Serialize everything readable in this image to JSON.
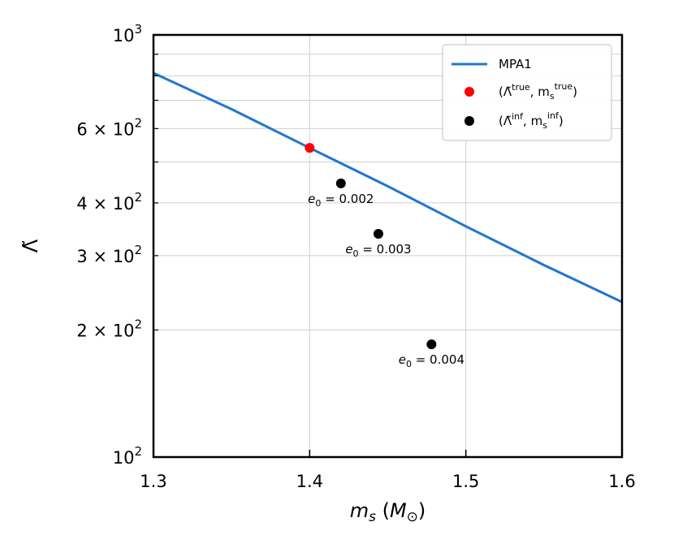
{
  "chart_data": {
    "type": "line",
    "title": "",
    "xlabel": "m_s (M_⊙)",
    "xlabel_parts": {
      "var": "m",
      "sub": "s",
      "unit_open": " (",
      "unit": "M",
      "unit_sub": "⊙",
      "unit_close": ")"
    },
    "ylabel": "Λ̃",
    "xscale": "linear",
    "yscale": "log",
    "xlim": [
      1.3,
      1.6
    ],
    "ylim": [
      100,
      1000
    ],
    "xticks": [
      1.3,
      1.4,
      1.5,
      1.6
    ],
    "xtick_labels": [
      "1.3",
      "1.4",
      "1.5",
      "1.6"
    ],
    "yticks_major": [
      {
        "value": 100,
        "mant": "",
        "base": "10",
        "exp": "2"
      },
      {
        "value": 1000,
        "mant": "",
        "base": "10",
        "exp": "3"
      }
    ],
    "yticks_minor_labeled": [
      {
        "value": 200,
        "mant": "2 × ",
        "base": "10",
        "exp": "2"
      },
      {
        "value": 300,
        "mant": "3 × ",
        "base": "10",
        "exp": "2"
      },
      {
        "value": 400,
        "mant": "4 × ",
        "base": "10",
        "exp": "2"
      },
      {
        "value": 600,
        "mant": "6 × ",
        "base": "10",
        "exp": "2"
      }
    ],
    "yticks_minor_unlabeled": [
      500,
      700,
      800,
      900
    ],
    "grid": true,
    "legend_position": "top-right",
    "series": [
      {
        "name": "MPA1",
        "kind": "line",
        "color": "#1f77d0",
        "x": [
          1.3,
          1.35,
          1.4,
          1.45,
          1.5,
          1.55,
          1.6
        ],
        "y": [
          812,
          667,
          540,
          438,
          352,
          285,
          233
        ]
      },
      {
        "name": "true",
        "legend": {
          "sym": "(Λ̃",
          "sup": "true",
          "sep": ", m",
          "sub": "s",
          "sup2": "true",
          "close": ")"
        },
        "kind": "scatter",
        "color": "#ff0000",
        "x": [
          1.4
        ],
        "y": [
          540
        ]
      },
      {
        "name": "inf",
        "legend": {
          "sym": "(Λ̃",
          "sup": "inf",
          "sep": ", m",
          "sub": "s",
          "sup2": "inf",
          "close": ")"
        },
        "kind": "scatter",
        "color": "#000000",
        "x": [
          1.42,
          1.444,
          1.478
        ],
        "y": [
          445,
          338,
          185
        ]
      }
    ],
    "annotations": [
      {
        "var": "e",
        "sub": "0",
        "text": " = 0.002",
        "x": 1.42,
        "y": 445
      },
      {
        "var": "e",
        "sub": "0",
        "text": " = 0.003",
        "x": 1.444,
        "y": 338
      },
      {
        "var": "e",
        "sub": "0",
        "text": " = 0.004",
        "x": 1.478,
        "y": 185
      }
    ]
  }
}
